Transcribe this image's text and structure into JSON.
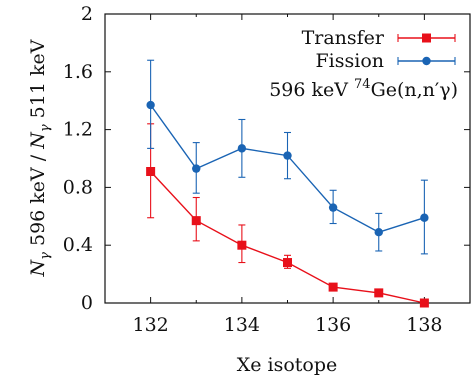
{
  "chart_data": {
    "type": "line",
    "xlabel": "Xe isotope",
    "ylabel_parts": {
      "n1": "N",
      "s1": "γ",
      "mid": " 596 keV / ",
      "n2": "N",
      "s2": "γ",
      "end": " 511 keV"
    },
    "xlim": [
      131,
      139
    ],
    "ylim": [
      0,
      2
    ],
    "xticks": [
      132,
      134,
      136,
      138
    ],
    "yticks": [
      0,
      0.4,
      0.8,
      1.2,
      1.6,
      2
    ],
    "ytick_labels": [
      "0",
      "0.4",
      "0.8",
      "1.2",
      "1.6",
      "2"
    ],
    "grid": false,
    "legend_position": "top-right",
    "annotation": {
      "pre": "596 keV ",
      "sup": "74",
      "post": "Ge(n,n′γ)"
    },
    "series": [
      {
        "name": "Transfer",
        "color": "#e8101a",
        "marker": "square",
        "x": [
          132,
          133,
          134,
          135,
          136,
          137,
          138
        ],
        "y": [
          0.91,
          0.57,
          0.4,
          0.28,
          0.11,
          0.07,
          0.0
        ],
        "err_low": [
          0.59,
          0.43,
          0.28,
          0.24,
          0.1,
          0.05,
          0.0
        ],
        "err_high": [
          1.24,
          0.73,
          0.54,
          0.33,
          0.12,
          0.09,
          0.0
        ]
      },
      {
        "name": "Fission",
        "color": "#1a64b4",
        "marker": "circle",
        "x": [
          132,
          133,
          134,
          135,
          136,
          137,
          138
        ],
        "y": [
          1.37,
          0.93,
          1.07,
          1.02,
          0.66,
          0.49,
          0.59
        ],
        "err_low": [
          1.07,
          0.76,
          0.87,
          0.86,
          0.55,
          0.36,
          0.34
        ],
        "err_high": [
          1.68,
          1.11,
          1.27,
          1.18,
          0.78,
          0.62,
          0.85
        ]
      }
    ]
  }
}
